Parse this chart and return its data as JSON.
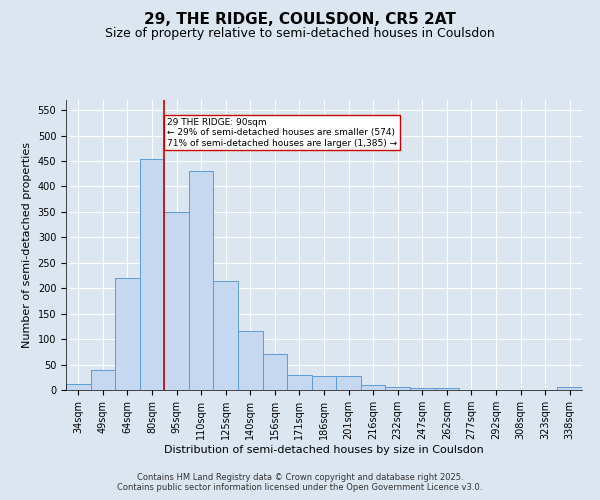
{
  "title_line1": "29, THE RIDGE, COULSDON, CR5 2AT",
  "title_line2": "Size of property relative to semi-detached houses in Coulsdon",
  "xlabel": "Distribution of semi-detached houses by size in Coulsdon",
  "ylabel": "Number of semi-detached properties",
  "footer_line1": "Contains HM Land Registry data © Crown copyright and database right 2025.",
  "footer_line2": "Contains public sector information licensed under the Open Government Licence v3.0.",
  "bar_labels": [
    "34sqm",
    "49sqm",
    "64sqm",
    "80sqm",
    "95sqm",
    "110sqm",
    "125sqm",
    "140sqm",
    "156sqm",
    "171sqm",
    "186sqm",
    "201sqm",
    "216sqm",
    "232sqm",
    "247sqm",
    "262sqm",
    "277sqm",
    "292sqm",
    "308sqm",
    "323sqm",
    "338sqm"
  ],
  "bar_values": [
    12,
    40,
    220,
    455,
    350,
    430,
    215,
    115,
    70,
    30,
    28,
    28,
    9,
    5,
    3,
    3,
    0,
    0,
    0,
    0,
    5
  ],
  "bar_color": "#c5d8ef",
  "bar_edge_color": "#5b9bd5",
  "bar_edge_width": 0.7,
  "vline_color": "#cc0000",
  "vline_x_idx": 3.5,
  "vline_label": "29 THE RIDGE: 90sqm",
  "annotation_smaller": "← 29% of semi-detached houses are smaller (574)",
  "annotation_larger": "71% of semi-detached houses are larger (1,385) →",
  "annotation_box_color": "white",
  "annotation_box_edge_color": "#cc0000",
  "ylim": [
    0,
    570
  ],
  "yticks": [
    0,
    50,
    100,
    150,
    200,
    250,
    300,
    350,
    400,
    450,
    500,
    550
  ],
  "bg_color": "#dce6f1",
  "plot_bg_color": "#dce6f1",
  "title_fontsize": 11,
  "subtitle_fontsize": 9,
  "tick_fontsize": 7,
  "label_fontsize": 8,
  "footer_fontsize": 6
}
